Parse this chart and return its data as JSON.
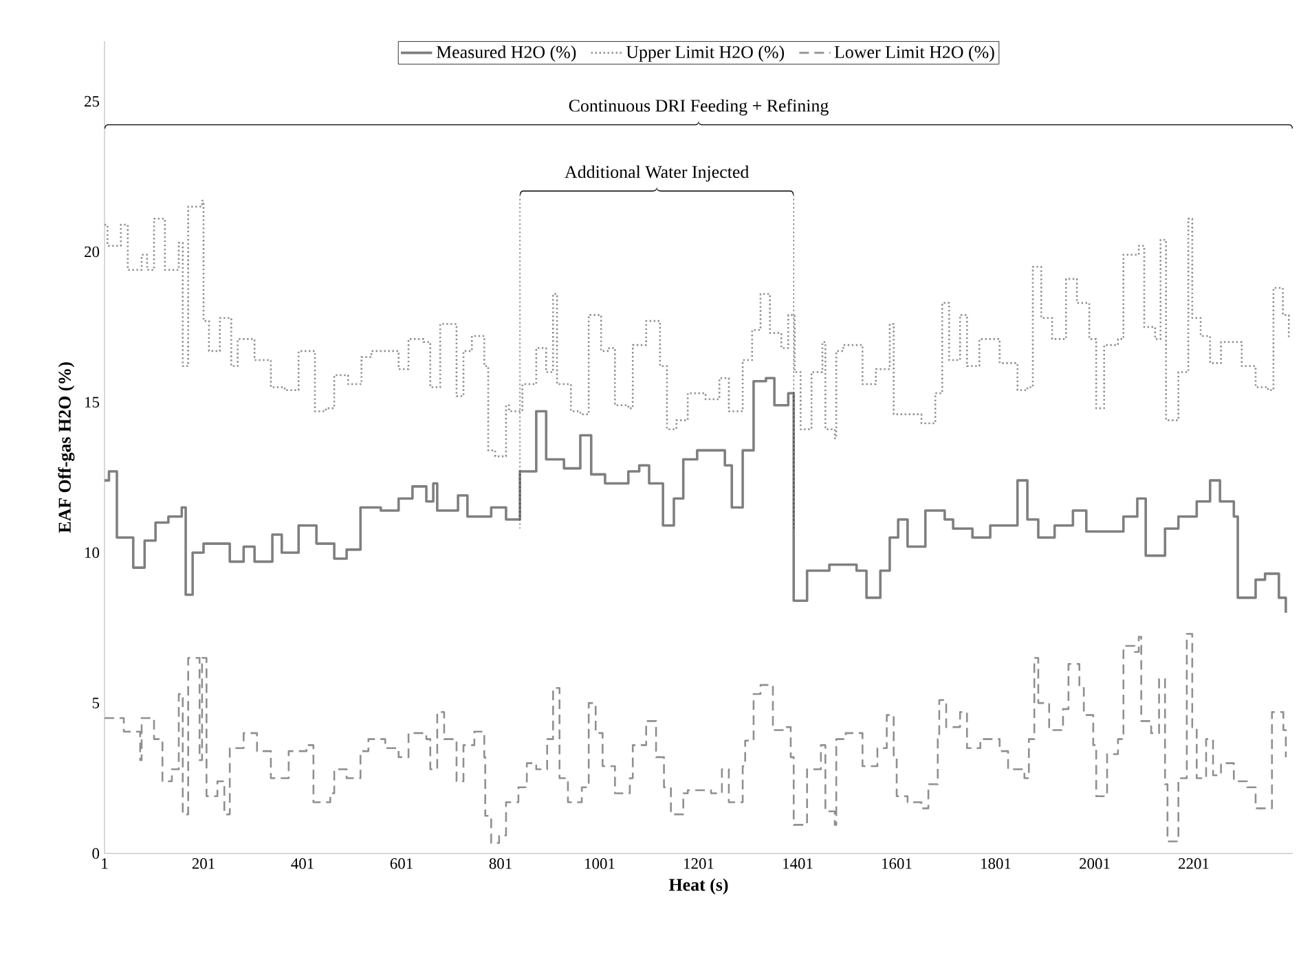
{
  "chart_data": {
    "type": "step",
    "xlabel": "Heat (s)",
    "ylabel": "EAF Off-gas H2O (%)",
    "xlim": [
      1,
      2401
    ],
    "ylim": [
      0,
      27
    ],
    "xticks": [
      1,
      201,
      401,
      601,
      801,
      1001,
      1201,
      1401,
      1601,
      1801,
      2001,
      2201
    ],
    "yticks": [
      0,
      5,
      10,
      15,
      20,
      25
    ],
    "grid": false,
    "legend": "top",
    "marker": "none",
    "series": [
      {
        "name": "Measured H2O (%)",
        "color": "#7f7f7f",
        "line_style": "solid",
        "x": [
          1,
          10,
          26,
          59,
          82,
          104,
          130,
          157,
          165,
          179,
          201,
          234,
          254,
          282,
          304,
          340,
          359,
          393,
          429,
          465,
          490,
          518,
          559,
          595,
          623,
          651,
          665,
          673,
          715,
          734,
          782,
          812,
          840,
          873,
          893,
          929,
          962,
          984,
          1012,
          1059,
          1081,
          1101,
          1129,
          1151,
          1170,
          1198,
          1234,
          1254,
          1268,
          1290,
          1312,
          1337,
          1354,
          1382,
          1393,
          1420,
          1465,
          1520,
          1540,
          1568,
          1587,
          1604,
          1623,
          1659,
          1698,
          1715,
          1754,
          1790,
          1818,
          1845,
          1865,
          1887,
          1920,
          1957,
          1984,
          2032,
          2059,
          2087,
          2104,
          2143,
          2170,
          2207,
          2234,
          2254,
          2282,
          2290,
          2326,
          2345,
          2373,
          2387
        ],
        "values": [
          12.4,
          12.7,
          10.5,
          9.5,
          10.4,
          11.0,
          11.2,
          11.5,
          8.6,
          10.0,
          10.3,
          10.3,
          9.7,
          10.2,
          9.7,
          10.6,
          10.0,
          10.9,
          10.3,
          9.8,
          10.1,
          11.5,
          11.4,
          11.8,
          12.2,
          11.7,
          12.3,
          11.4,
          11.9,
          11.2,
          11.5,
          11.1,
          12.7,
          14.7,
          13.1,
          12.8,
          13.9,
          12.6,
          12.3,
          12.7,
          12.9,
          12.3,
          10.9,
          11.8,
          13.1,
          13.4,
          13.4,
          12.9,
          11.5,
          13.4,
          15.7,
          15.8,
          14.9,
          15.3,
          8.4,
          9.4,
          9.6,
          9.4,
          8.5,
          9.4,
          10.5,
          11.1,
          10.2,
          11.4,
          11.1,
          10.8,
          10.5,
          10.9,
          10.9,
          12.4,
          11.1,
          10.5,
          10.9,
          11.4,
          10.7,
          10.7,
          11.2,
          11.8,
          9.9,
          10.8,
          11.2,
          11.7,
          12.4,
          11.7,
          11.2,
          8.5,
          9.1,
          9.3,
          8.5,
          8.0
        ]
      },
      {
        "name": "Upper Limit H2O (%)",
        "color": "#8f8f8f",
        "line_style": "dotted",
        "x": [
          1,
          7,
          34,
          48,
          76,
          87,
          101,
          123,
          151,
          159,
          170,
          198,
          201,
          212,
          234,
          257,
          270,
          304,
          337,
          365,
          393,
          420,
          426,
          448,
          465,
          493,
          520,
          540,
          595,
          615,
          645,
          659,
          679,
          712,
          726,
          743,
          768,
          776,
          790,
          812,
          818,
          845,
          873,
          893,
          907,
          915,
          943,
          962,
          979,
          1004,
          1020,
          1032,
          1059,
          1068,
          1095,
          1123,
          1137,
          1156,
          1179,
          1215,
          1243,
          1262,
          1290,
          1309,
          1326,
          1345,
          1368,
          1382,
          1395,
          1407,
          1429,
          1451,
          1457,
          1476,
          1479,
          1493,
          1532,
          1559,
          1587,
          1595,
          1651,
          1679,
          1693,
          1707,
          1729,
          1743,
          1768,
          1809,
          1845,
          1865,
          1876,
          1893,
          1915,
          1943,
          1965,
          1990,
          2004,
          2020,
          2048,
          2059,
          2090,
          2101,
          2123,
          2134,
          2145,
          2170,
          2190,
          2198,
          2215,
          2234,
          2256,
          2298,
          2326,
          2351,
          2362,
          2381,
          2393
        ],
        "values": [
          20.9,
          20.2,
          20.9,
          19.4,
          19.9,
          19.4,
          21.1,
          19.4,
          20.3,
          16.2,
          21.5,
          21.7,
          17.7,
          16.7,
          17.8,
          16.2,
          17.1,
          16.4,
          15.5,
          15.4,
          16.7,
          16.7,
          14.7,
          14.8,
          15.9,
          15.6,
          16.5,
          16.7,
          16.1,
          17.1,
          17.0,
          15.5,
          17.6,
          15.2,
          16.7,
          17.2,
          16.2,
          13.4,
          13.2,
          14.9,
          14.7,
          15.6,
          16.8,
          16.0,
          18.6,
          15.6,
          14.7,
          14.6,
          17.9,
          16.7,
          16.8,
          14.9,
          14.8,
          16.9,
          17.7,
          16.2,
          14.1,
          14.4,
          15.3,
          15.1,
          15.8,
          14.7,
          16.4,
          17.4,
          18.6,
          17.3,
          16.8,
          17.9,
          16.0,
          14.1,
          16.0,
          17.0,
          14.1,
          13.8,
          16.7,
          16.9,
          15.6,
          16.1,
          17.6,
          14.6,
          14.3,
          15.3,
          18.3,
          16.4,
          17.9,
          16.2,
          17.1,
          16.3,
          15.4,
          15.5,
          19.5,
          17.8,
          17.1,
          19.1,
          18.3,
          17.1,
          14.8,
          16.9,
          17.1,
          19.9,
          20.2,
          17.5,
          17.1,
          20.4,
          14.4,
          16.0,
          21.1,
          17.8,
          17.2,
          16.3,
          17.0,
          16.2,
          15.5,
          15.4,
          18.8,
          17.9,
          17.1
        ]
      },
      {
        "name": "Lower Limit H2O (%)",
        "color": "#8f8f8f",
        "line_style": "dashed",
        "x": [
          1,
          40,
          73,
          76,
          101,
          118,
          137,
          151,
          159,
          170,
          193,
          198,
          207,
          229,
          243,
          254,
          282,
          309,
          337,
          365,
          373,
          409,
          423,
          457,
          465,
          490,
          518,
          534,
          568,
          595,
          615,
          651,
          659,
          673,
          687,
          712,
          726,
          748,
          768,
          770,
          782,
          798,
          812,
          837,
          854,
          873,
          895,
          907,
          920,
          937,
          965,
          979,
          993,
          1007,
          1032,
          1062,
          1068,
          1095,
          1115,
          1131,
          1145,
          1170,
          1179,
          1226,
          1248,
          1262,
          1290,
          1295,
          1312,
          1326,
          1351,
          1373,
          1387,
          1393,
          1420,
          1448,
          1457,
          1476,
          1479,
          1498,
          1532,
          1562,
          1581,
          1595,
          1601,
          1623,
          1651,
          1665,
          1684,
          1687,
          1701,
          1729,
          1743,
          1770,
          1809,
          1826,
          1859,
          1868,
          1879,
          1887,
          1909,
          1937,
          1948,
          1970,
          1979,
          1998,
          2004,
          2026,
          2048,
          2059,
          2082,
          2090,
          2095,
          2115,
          2131,
          2143,
          2148,
          2170,
          2187,
          2198,
          2207,
          2226,
          2240,
          2256,
          2282,
          2309,
          2326,
          2351,
          2359,
          2382,
          2387
        ],
        "values": [
          4.5,
          4.05,
          3.1,
          4.5,
          3.8,
          2.4,
          2.8,
          5.3,
          1.3,
          6.5,
          3.1,
          6.5,
          1.9,
          2.4,
          1.3,
          3.5,
          4.0,
          3.4,
          2.5,
          2.5,
          3.4,
          3.6,
          1.7,
          2.0,
          2.8,
          2.5,
          3.4,
          3.8,
          3.5,
          3.2,
          4.0,
          3.8,
          2.8,
          4.7,
          3.8,
          2.4,
          3.6,
          4.05,
          3.2,
          1.25,
          0.35,
          0.6,
          1.7,
          2.2,
          3.0,
          2.8,
          3.8,
          5.5,
          2.5,
          1.7,
          2.2,
          5.0,
          4.0,
          2.9,
          2.0,
          2.5,
          3.6,
          4.4,
          3.2,
          2.2,
          1.3,
          2.0,
          2.1,
          2.0,
          2.8,
          1.7,
          2.9,
          3.75,
          5.3,
          5.6,
          4.1,
          4.2,
          3.2,
          0.95,
          2.8,
          3.6,
          1.4,
          0.95,
          3.8,
          4.0,
          2.9,
          3.5,
          4.6,
          3.2,
          1.9,
          1.7,
          1.5,
          2.3,
          3.8,
          5.1,
          4.2,
          4.7,
          3.5,
          3.8,
          3.4,
          2.8,
          2.5,
          3.8,
          6.5,
          5.0,
          4.1,
          4.8,
          6.3,
          5.5,
          4.6,
          3.6,
          1.9,
          3.3,
          3.8,
          6.9,
          6.7,
          7.2,
          4.4,
          4.0,
          5.8,
          2.3,
          0.4,
          2.5,
          7.3,
          4.2,
          2.5,
          3.8,
          2.6,
          3.0,
          2.4,
          2.2,
          1.5,
          1.5,
          4.7,
          4.1,
          3.2
        ]
      }
    ],
    "ref_lines": [
      {
        "axis": "x",
        "value": 840,
        "line_style": "dotted",
        "color": "#000000"
      },
      {
        "axis": "x",
        "value": 1393,
        "line_style": "dotted",
        "color": "#000000"
      }
    ],
    "annotations": [
      "Continuous DRI Feeding + Refining",
      "Additional Water Injected"
    ]
  }
}
